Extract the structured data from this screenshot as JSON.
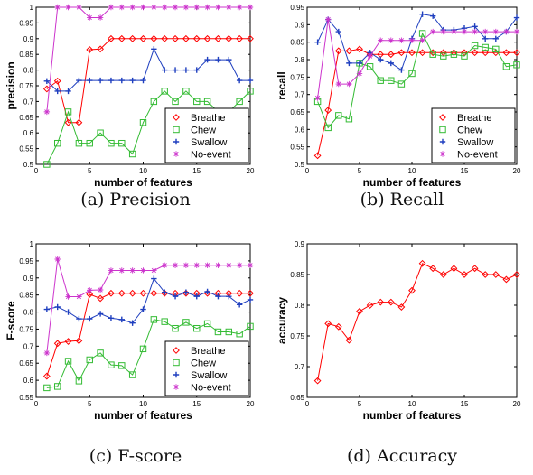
{
  "series_colors": {
    "Breathe": "#ff0000",
    "Chew": "#33bb33",
    "Swallow": "#1f3fbf",
    "No-event": "#cc33cc"
  },
  "series_markers": {
    "Breathe": "diamond",
    "Chew": "square",
    "Swallow": "plus-star",
    "No-event": "star"
  },
  "chart_data": [
    {
      "id": "precision",
      "type": "line",
      "caption": "(a) Precision",
      "xlabel": "number of features",
      "ylabel": "precision",
      "xlim": [
        0,
        20
      ],
      "ylim": [
        0.5,
        1
      ],
      "xticks": [
        0,
        5,
        10,
        15,
        20
      ],
      "yticks": [
        0.5,
        0.55,
        0.6,
        0.65,
        0.7,
        0.75,
        0.8,
        0.85,
        0.9,
        0.95,
        1
      ],
      "ytick_labels": [
        "0.5",
        "0.55",
        "0.6",
        "0.65",
        "0.7",
        "0.75",
        "0.8",
        "0.85",
        "0.9",
        "0.95",
        "1"
      ],
      "legend": "bottom-right",
      "x": [
        1,
        2,
        3,
        4,
        5,
        6,
        7,
        8,
        9,
        10,
        11,
        12,
        13,
        14,
        15,
        16,
        17,
        18,
        19,
        20
      ],
      "series": [
        {
          "name": "Breathe",
          "values": [
            0.74,
            0.765,
            0.633,
            0.633,
            0.865,
            0.867,
            0.9,
            0.9,
            0.9,
            0.9,
            0.9,
            0.9,
            0.9,
            0.9,
            0.9,
            0.9,
            0.9,
            0.9,
            0.9,
            0.9
          ]
        },
        {
          "name": "Chew",
          "values": [
            0.5,
            0.567,
            0.667,
            0.567,
            0.567,
            0.6,
            0.567,
            0.567,
            0.533,
            0.633,
            0.7,
            0.733,
            0.7,
            0.733,
            0.7,
            0.7,
            0.667,
            0.667,
            0.7,
            0.733
          ]
        },
        {
          "name": "Swallow",
          "values": [
            0.765,
            0.733,
            0.733,
            0.767,
            0.767,
            0.767,
            0.767,
            0.767,
            0.767,
            0.767,
            0.867,
            0.8,
            0.8,
            0.8,
            0.8,
            0.833,
            0.833,
            0.833,
            0.767,
            0.767
          ]
        },
        {
          "name": "No-event",
          "values": [
            0.667,
            1,
            1,
            1,
            0.967,
            0.967,
            1,
            1,
            1,
            1,
            1,
            1,
            1,
            1,
            1,
            1,
            1,
            1,
            1,
            1
          ]
        }
      ]
    },
    {
      "id": "recall",
      "type": "line",
      "caption": "(b) Recall",
      "xlabel": "number of features",
      "ylabel": "recall",
      "xlim": [
        0,
        20
      ],
      "ylim": [
        0.5,
        0.95
      ],
      "xticks": [
        0,
        5,
        10,
        15,
        20
      ],
      "yticks": [
        0.5,
        0.55,
        0.6,
        0.65,
        0.7,
        0.75,
        0.8,
        0.85,
        0.9,
        0.95
      ],
      "ytick_labels": [
        "0.5",
        "0.55",
        "0.6",
        "0.65",
        "0.7",
        "0.75",
        "0.8",
        "0.85",
        "0.9",
        "0.95"
      ],
      "legend": "bottom-right",
      "x": [
        1,
        2,
        3,
        4,
        5,
        6,
        7,
        8,
        9,
        10,
        11,
        12,
        13,
        14,
        15,
        16,
        17,
        18,
        19,
        20
      ],
      "series": [
        {
          "name": "Breathe",
          "values": [
            0.525,
            0.655,
            0.825,
            0.825,
            0.83,
            0.815,
            0.815,
            0.815,
            0.82,
            0.82,
            0.82,
            0.82,
            0.82,
            0.82,
            0.82,
            0.82,
            0.82,
            0.82,
            0.82,
            0.82
          ]
        },
        {
          "name": "Chew",
          "values": [
            0.68,
            0.605,
            0.64,
            0.63,
            0.79,
            0.78,
            0.74,
            0.74,
            0.73,
            0.76,
            0.875,
            0.815,
            0.81,
            0.815,
            0.81,
            0.84,
            0.835,
            0.83,
            0.78,
            0.785
          ]
        },
        {
          "name": "Swallow",
          "values": [
            0.85,
            0.915,
            0.88,
            0.79,
            0.79,
            0.82,
            0.8,
            0.79,
            0.77,
            0.86,
            0.93,
            0.925,
            0.885,
            0.885,
            0.89,
            0.895,
            0.86,
            0.86,
            0.88,
            0.92
          ]
        },
        {
          "name": "No-event",
          "values": [
            0.69,
            0.915,
            0.73,
            0.73,
            0.76,
            0.81,
            0.855,
            0.855,
            0.855,
            0.855,
            0.855,
            0.88,
            0.88,
            0.88,
            0.88,
            0.88,
            0.88,
            0.88,
            0.88,
            0.88
          ]
        }
      ]
    },
    {
      "id": "fscore",
      "type": "line",
      "caption": "(c) F-score",
      "xlabel": "number of features",
      "ylabel": "F-score",
      "xlim": [
        0,
        20
      ],
      "ylim": [
        0.55,
        1
      ],
      "xticks": [
        0,
        5,
        10,
        15,
        20
      ],
      "yticks": [
        0.55,
        0.6,
        0.65,
        0.7,
        0.75,
        0.8,
        0.85,
        0.9,
        0.95,
        1
      ],
      "ytick_labels": [
        "0.55",
        "0.6",
        "0.65",
        "0.7",
        "0.75",
        "0.8",
        "0.85",
        "0.9",
        "0.95",
        "1"
      ],
      "legend": "bottom-right",
      "x": [
        1,
        2,
        3,
        4,
        5,
        6,
        7,
        8,
        9,
        10,
        11,
        12,
        13,
        14,
        15,
        16,
        17,
        18,
        19,
        20
      ],
      "series": [
        {
          "name": "Breathe",
          "values": [
            0.612,
            0.708,
            0.714,
            0.716,
            0.852,
            0.84,
            0.855,
            0.855,
            0.855,
            0.855,
            0.855,
            0.855,
            0.855,
            0.855,
            0.855,
            0.855,
            0.855,
            0.855,
            0.855,
            0.855
          ]
        },
        {
          "name": "Chew",
          "values": [
            0.578,
            0.582,
            0.656,
            0.598,
            0.66,
            0.68,
            0.645,
            0.643,
            0.616,
            0.692,
            0.778,
            0.772,
            0.752,
            0.77,
            0.752,
            0.766,
            0.742,
            0.742,
            0.736,
            0.758
          ]
        },
        {
          "name": "Swallow",
          "values": [
            0.808,
            0.815,
            0.8,
            0.78,
            0.78,
            0.795,
            0.782,
            0.778,
            0.768,
            0.808,
            0.898,
            0.858,
            0.846,
            0.858,
            0.846,
            0.86,
            0.846,
            0.846,
            0.822,
            0.836
          ]
        },
        {
          "name": "No-event",
          "values": [
            0.68,
            0.955,
            0.845,
            0.845,
            0.864,
            0.865,
            0.922,
            0.922,
            0.922,
            0.922,
            0.922,
            0.937,
            0.937,
            0.937,
            0.937,
            0.937,
            0.937,
            0.937,
            0.937,
            0.937
          ]
        }
      ]
    },
    {
      "id": "accuracy",
      "type": "line",
      "caption": "(d) Accuracy",
      "xlabel": "number of features",
      "ylabel": "accuracy",
      "xlim": [
        0,
        20
      ],
      "ylim": [
        0.65,
        0.9
      ],
      "xticks": [
        0,
        5,
        10,
        15,
        20
      ],
      "yticks": [
        0.65,
        0.7,
        0.75,
        0.8,
        0.85,
        0.9
      ],
      "ytick_labels": [
        "0.65",
        "0.7",
        "0.75",
        "0.8",
        "0.85",
        "0.9"
      ],
      "legend": "none",
      "x": [
        1,
        2,
        3,
        4,
        5,
        6,
        7,
        8,
        9,
        10,
        11,
        12,
        13,
        14,
        15,
        16,
        17,
        18,
        19,
        20
      ],
      "series": [
        {
          "name": "",
          "color_key": "Breathe",
          "values": [
            0.677,
            0.77,
            0.765,
            0.743,
            0.79,
            0.8,
            0.805,
            0.805,
            0.797,
            0.824,
            0.868,
            0.86,
            0.85,
            0.86,
            0.85,
            0.86,
            0.85,
            0.85,
            0.842,
            0.85
          ]
        }
      ]
    }
  ]
}
